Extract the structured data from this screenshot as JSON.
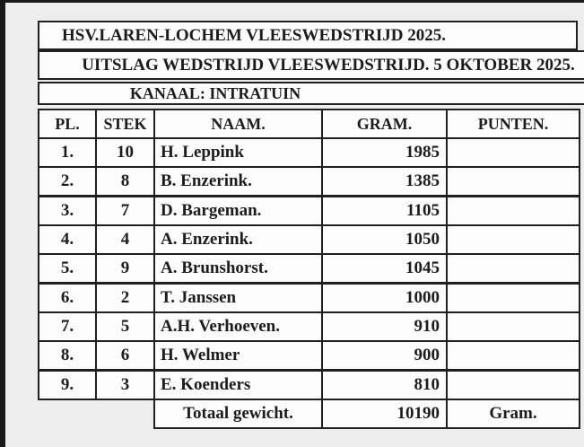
{
  "titles": {
    "main": "HSV.LAREN-LOCHEM VLEESWEDSTRIJD 2025.",
    "result_line": "UITSLAG WEDSTRIJD VLEESWEDSTRIJD. 5 OKTOBER 2025.",
    "canal": "KANAAL: INTRATUIN"
  },
  "table": {
    "headers": [
      "PL.",
      "STEK",
      "NAAM.",
      "GRAM.",
      "PUNTEN."
    ],
    "rows": [
      {
        "pl": "1.",
        "stek": "10",
        "naam": "H. Leppink",
        "gram": "1985",
        "punten": ""
      },
      {
        "pl": "2.",
        "stek": "8",
        "naam": "B. Enzerink.",
        "gram": "1385",
        "punten": ""
      },
      {
        "pl": "3.",
        "stek": "7",
        "naam": "D. Bargeman.",
        "gram": "1105",
        "punten": ""
      },
      {
        "pl": "4.",
        "stek": "4",
        "naam": "A. Enzerink.",
        "gram": "1050",
        "punten": ""
      },
      {
        "pl": "5.",
        "stek": "9",
        "naam": "A. Brunshorst.",
        "gram": "1045",
        "punten": ""
      },
      {
        "pl": "6.",
        "stek": "2",
        "naam": "T. Janssen",
        "gram": "1000",
        "punten": ""
      },
      {
        "pl": "7.",
        "stek": "5",
        "naam": "A.H. Verhoeven.",
        "gram": "910",
        "punten": ""
      },
      {
        "pl": "8.",
        "stek": "6",
        "naam": "H. Welmer",
        "gram": "900",
        "punten": ""
      },
      {
        "pl": "9.",
        "stek": "3",
        "naam": "E. Koenders",
        "gram": "810",
        "punten": ""
      }
    ],
    "total": {
      "label": "Totaal gewicht.",
      "value": "10190",
      "unit": "Gram."
    }
  },
  "colors": {
    "border": "#202020",
    "text": "#1c1c1c",
    "cell_bg": "#fcfcfc",
    "page_bg": "#ededed",
    "edge_bar": "#191919"
  }
}
